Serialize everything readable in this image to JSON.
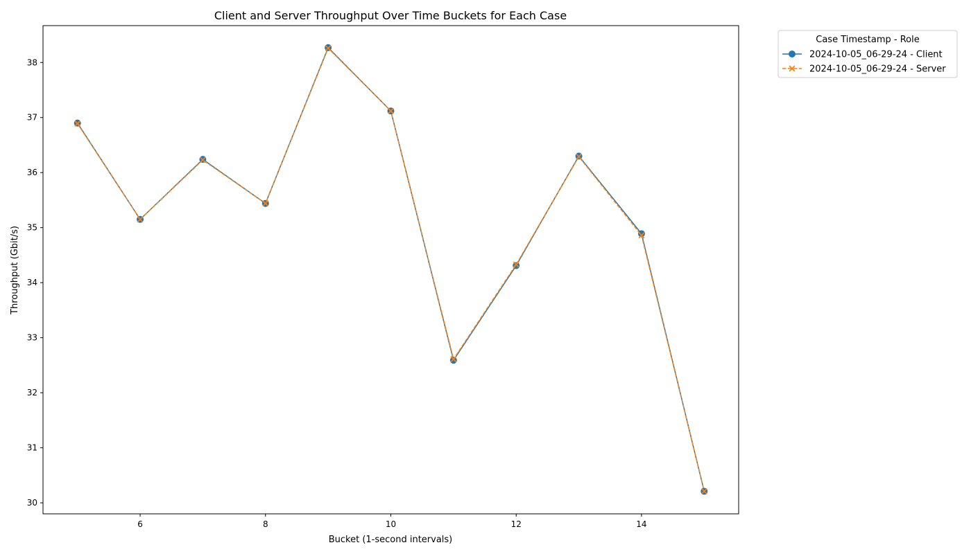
{
  "chart_data": {
    "type": "line",
    "title": "Client and Server Throughput Over Time Buckets for Each Case",
    "xlabel": "Bucket (1-second intervals)",
    "ylabel": "Throughput (Gbit/s)",
    "xlim": [
      4.45,
      15.55
    ],
    "ylim": [
      29.8,
      38.67
    ],
    "x_ticks": [
      6,
      8,
      10,
      12,
      14
    ],
    "y_ticks": [
      30,
      31,
      32,
      33,
      34,
      35,
      36,
      37,
      38
    ],
    "grid": false,
    "legend": {
      "title": "Case Timestamp - Role",
      "placement": "outside-top-right"
    },
    "x": [
      5,
      6,
      7,
      8,
      9,
      10,
      11,
      12,
      13,
      14,
      15
    ],
    "series": [
      {
        "name": "2024-10-05_06-29-24 - Client",
        "color": "#1f77b4",
        "marker": "circle",
        "line_style": "solid",
        "values": [
          36.9,
          35.15,
          36.24,
          35.44,
          38.27,
          37.12,
          32.59,
          34.31,
          36.3,
          34.89,
          30.21
        ]
      },
      {
        "name": "2024-10-05_06-29-24 - Server",
        "color": "#ff7f0e",
        "marker": "x",
        "line_style": "dashed",
        "values": [
          36.89,
          35.15,
          36.23,
          35.44,
          38.26,
          37.12,
          32.61,
          34.33,
          36.29,
          34.86,
          30.21
        ]
      }
    ]
  }
}
